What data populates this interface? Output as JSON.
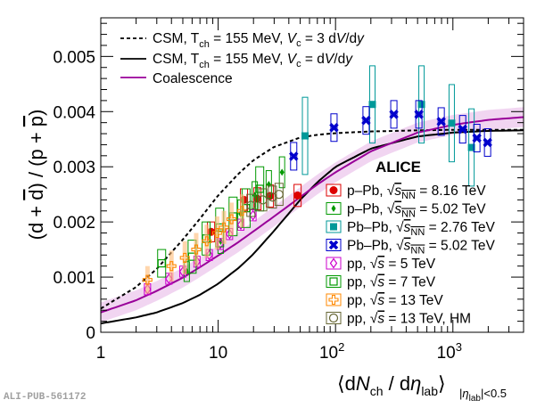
{
  "chart_data": {
    "type": "scatter",
    "title": "",
    "xlabel": "⟨dN_ch / dη_lab⟩_{|η_lab|<0.5}",
    "ylabel": "(d + d̄) / (p + p̄)",
    "xscale": "log",
    "xlim": [
      1,
      4000
    ],
    "ylim": [
      0,
      0.0057
    ],
    "x_ticks": [
      {
        "value": 1,
        "label": "1"
      },
      {
        "value": 10,
        "label": "10"
      },
      {
        "value": 100,
        "label": "10",
        "sup": "2"
      },
      {
        "value": 1000,
        "label": "10",
        "sup": "3"
      }
    ],
    "y_ticks": [
      {
        "value": 0,
        "label": "0"
      },
      {
        "value": 0.001,
        "label": "0.001"
      },
      {
        "value": 0.002,
        "label": "0.002"
      },
      {
        "value": 0.003,
        "label": "0.003"
      },
      {
        "value": 0.004,
        "label": "0.004"
      },
      {
        "value": 0.005,
        "label": "0.005"
      }
    ],
    "grid": false,
    "annotation": "ALICE",
    "models": [
      {
        "name": "CSM, T_ch = 155 MeV, V_c = 3 dV/dy",
        "style": "dashed",
        "color": "#000000",
        "x": [
          1,
          2,
          3,
          5,
          7,
          10,
          15,
          20,
          30,
          50,
          70,
          100,
          200,
          500,
          1000,
          2000,
          4000
        ],
        "y": [
          0.00043,
          0.00082,
          0.00115,
          0.00168,
          0.00206,
          0.00248,
          0.00288,
          0.00312,
          0.00336,
          0.00353,
          0.00358,
          0.00361,
          0.00364,
          0.00366,
          0.00367,
          0.00367,
          0.00367
        ]
      },
      {
        "name": "CSM, T_ch = 155 MeV, V_c = dV/dy",
        "style": "solid",
        "color": "#000000",
        "x": [
          1,
          2,
          3,
          5,
          7,
          10,
          15,
          20,
          30,
          50,
          70,
          100,
          200,
          500,
          1000,
          2000,
          4000
        ],
        "y": [
          0.00016,
          0.00027,
          0.00036,
          0.00053,
          0.00068,
          0.00088,
          0.00117,
          0.00142,
          0.00184,
          0.0024,
          0.00272,
          0.003,
          0.00333,
          0.00355,
          0.00362,
          0.00365,
          0.00366
        ]
      },
      {
        "name": "Coalescence",
        "style": "solid",
        "color": "#990099",
        "x": [
          1,
          2,
          3,
          5,
          7,
          10,
          15,
          20,
          30,
          50,
          70,
          100,
          200,
          500,
          1000,
          2000,
          4000
        ],
        "y": [
          0.00036,
          0.00058,
          0.00075,
          0.00099,
          0.00118,
          0.00139,
          0.00164,
          0.00183,
          0.0021,
          0.00245,
          0.00268,
          0.0029,
          0.00328,
          0.00362,
          0.00376,
          0.00385,
          0.0039
        ],
        "band": 0.00018
      }
    ],
    "series": [
      {
        "name": "p–Pb, √sNN = 8.16 TeV",
        "marker": "filled-circle",
        "color": "#dd0000",
        "x": [
          8.7,
          16.6,
          21.6,
          27.6,
          47.5
        ],
        "y": [
          0.00182,
          0.0024,
          0.00242,
          0.00247,
          0.00248
        ],
        "sys": [
          0.00018,
          0.0002,
          0.0002,
          0.0002,
          0.0002
        ]
      },
      {
        "name": "p–Pb, √sNN = 5.02 TeV",
        "marker": "filled-diamond",
        "color": "#009900",
        "x": [
          5.4,
          10.5,
          15.5,
          20.5,
          27,
          35
        ],
        "y": [
          0.0011,
          0.00165,
          0.00215,
          0.00248,
          0.00268,
          0.0029
        ],
        "sys": [
          0.00018,
          0.00022,
          0.00025,
          0.00025,
          0.00025,
          0.00028
        ]
      },
      {
        "name": "Pb–Pb, √sNN = 2.76 TeV",
        "marker": "filled-square",
        "color": "#009999",
        "x": [
          55,
          206,
          540,
          977,
          1440
        ],
        "y": [
          0.00356,
          0.00413,
          0.00413,
          0.00379,
          0.00335
        ],
        "sys": [
          0.0007,
          0.0007,
          0.0007,
          0.0007,
          0.0007
        ]
      },
      {
        "name": "Pb–Pb, √sNN = 5.02 TeV",
        "marker": "filled-cross",
        "color": "#0000cc",
        "x": [
          44,
          97,
          182,
          314,
          513,
          795,
          1211,
          1600,
          1974
        ],
        "y": [
          0.00319,
          0.00371,
          0.00384,
          0.00395,
          0.00395,
          0.00382,
          0.00368,
          0.00352,
          0.00344
        ],
        "sys": [
          0.00025,
          0.00025,
          0.00025,
          0.00025,
          0.00025,
          0.00025,
          0.00025,
          0.00025,
          0.00025
        ]
      },
      {
        "name": "pp, √s = 5 TeV",
        "marker": "open-diamond",
        "color": "#cc00cc",
        "x": [
          2.5,
          3.8,
          5,
          6.6,
          8.4,
          10.4,
          12.5,
          15.6,
          19.8
        ],
        "y": [
          0.00078,
          0.00097,
          0.0011,
          0.00128,
          0.0014,
          0.0016,
          0.00178,
          0.00195,
          0.00212
        ],
        "sys": [
          0.0001,
          0.0001,
          0.0001,
          0.0001,
          0.0001,
          0.0001,
          0.0001,
          0.0001,
          0.0001
        ]
      },
      {
        "name": "pp, √s = 7 TeV",
        "marker": "open-square",
        "color": "#009900",
        "x": [
          3.3,
          6,
          7.9,
          10.3,
          13.4,
          17.3,
          22.6
        ],
        "y": [
          0.00125,
          0.00137,
          0.0017,
          0.0019,
          0.0021,
          0.00225,
          0.0026
        ],
        "sys": [
          0.00025,
          0.0003,
          0.0003,
          0.00035,
          0.00035,
          0.00035,
          0.0004
        ]
      },
      {
        "name": "pp, √s = 13 TeV",
        "marker": "open-cross",
        "color": "#ff8800",
        "x": [
          2.5,
          4,
          5.2,
          6.5,
          8,
          9.8,
          11.2,
          13,
          16
        ],
        "y": [
          0.00095,
          0.0012,
          0.00135,
          0.0015,
          0.00165,
          0.0018,
          0.0019,
          0.00205,
          0.0022
        ],
        "sys": [
          0.00025,
          0.00028,
          0.0003,
          0.0003,
          0.0003,
          0.0003,
          0.0003,
          0.0003,
          0.0003
        ]
      },
      {
        "name": "pp, √s = 13 TeV, HM",
        "marker": "open-circle",
        "color": "#666633",
        "x": [
          19,
          24,
          29,
          33
        ],
        "y": [
          0.0023,
          0.0024,
          0.00245,
          0.0025
        ],
        "sys": [
          0.0002,
          0.0002,
          0.0002,
          0.0002
        ]
      }
    ],
    "legend_placement": "upper-left (models), lower-right (data)"
  },
  "legend_labels": {
    "model_dashed": {
      "main": "CSM, T",
      "sub": "ch",
      "rest": " = 155 MeV, ",
      "vc": "V",
      "vcsub": "c",
      "tail": " = 3 d",
      "V": "V",
      "slash": "/d",
      "y": "y"
    },
    "model_solid": {
      "main": "CSM, T",
      "sub": "ch",
      "rest": " = 155 MeV, ",
      "vc": "V",
      "vcsub": "c",
      "tail": " = d",
      "V": "V",
      "slash": "/d",
      "y": "y"
    },
    "model_coal": "Coalescence",
    "data": [
      {
        "sys": "p–Pb, ",
        "val": " = 8.16 TeV",
        "nn": true
      },
      {
        "sys": "p–Pb, ",
        "val": " = 5.02 TeV",
        "nn": true
      },
      {
        "sys": "Pb–Pb, ",
        "val": " = 2.76 TeV",
        "nn": true
      },
      {
        "sys": "Pb–Pb, ",
        "val": " = 5.02 TeV",
        "nn": true
      },
      {
        "sys": "pp, ",
        "val": " = 5 TeV",
        "nn": false
      },
      {
        "sys": "pp, ",
        "val": " = 7 TeV",
        "nn": false
      },
      {
        "sys": "pp, ",
        "val": " = 13 TeV",
        "nn": false
      },
      {
        "sys": "pp, ",
        "val": " = 13 TeV, HM",
        "nn": false
      }
    ]
  },
  "watermark": "ALI-PUB-561172"
}
